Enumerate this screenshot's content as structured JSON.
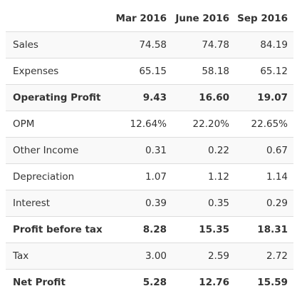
{
  "table": {
    "header": [
      "",
      "Mar 2016",
      "June 2016",
      "Sep 2016"
    ],
    "rows": [
      {
        "label": "Sales",
        "values": [
          "74.58",
          "74.78",
          "84.19"
        ],
        "bold": false
      },
      {
        "label": "Expenses",
        "values": [
          "65.15",
          "58.18",
          "65.12"
        ],
        "bold": false
      },
      {
        "label": "Operating Profit",
        "values": [
          "9.43",
          "16.60",
          "19.07"
        ],
        "bold": true
      },
      {
        "label": "OPM",
        "values": [
          "12.64%",
          "22.20%",
          "22.65%"
        ],
        "bold": false
      },
      {
        "label": "Other Income",
        "values": [
          "0.31",
          "0.22",
          "0.67"
        ],
        "bold": false
      },
      {
        "label": "Depreciation",
        "values": [
          "1.07",
          "1.12",
          "1.14"
        ],
        "bold": false
      },
      {
        "label": "Interest",
        "values": [
          "0.39",
          "0.35",
          "0.29"
        ],
        "bold": false
      },
      {
        "label": "Profit before tax",
        "values": [
          "8.28",
          "15.35",
          "18.31"
        ],
        "bold": true
      },
      {
        "label": "Tax",
        "values": [
          "3.00",
          "2.59",
          "2.72"
        ],
        "bold": false
      },
      {
        "label": "Net Profit",
        "values": [
          "5.28",
          "12.76",
          "15.59"
        ],
        "bold": true
      }
    ]
  },
  "colors": {
    "text": "#333333",
    "stripe": "#f9f9f9",
    "border": "#dddddd",
    "background": "#ffffff"
  }
}
